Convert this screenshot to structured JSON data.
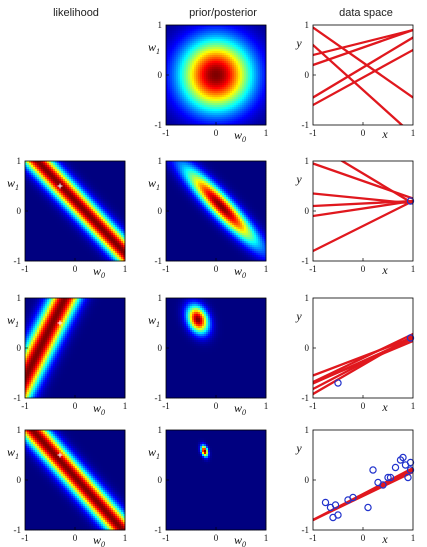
{
  "figure": {
    "columns": [
      {
        "key": "likelihood",
        "title": "likelihood"
      },
      {
        "key": "prior_posterior",
        "title": "prior/posterior"
      },
      {
        "key": "data_space",
        "title": "data space"
      }
    ],
    "axis_labels": {
      "w_symbol": "w",
      "w1_sub": "1",
      "w0_sub": "0",
      "x": "x",
      "y": "y"
    },
    "ticks": {
      "neg": "-1",
      "zero": "0",
      "pos": "1"
    }
  },
  "chart_data": [
    {
      "type": "heatmap",
      "row": 0,
      "column": "prior_posterior",
      "distribution": "prior",
      "mean": [
        0,
        0
      ],
      "cov": [
        [
          0.25,
          0
        ],
        [
          0,
          0.25
        ]
      ],
      "xlim": [
        -1,
        1
      ],
      "ylim": [
        -1,
        1
      ],
      "xlabel": "w0",
      "ylabel": "w1",
      "colormap": "jet"
    },
    {
      "type": "line",
      "row": 0,
      "column": "data_space",
      "lines": [
        {
          "w0": -0.3,
          "w1": -0.9
        },
        {
          "w0": 0.55,
          "w1": 0.35
        },
        {
          "w0": -0.05,
          "w1": 0.55
        },
        {
          "w0": 0.25,
          "w1": -0.7
        },
        {
          "w0": 0.65,
          "w1": 0.25
        },
        {
          "w0": 0.15,
          "w1": 0.6
        }
      ],
      "points": [],
      "xlim": [
        -1,
        1
      ],
      "ylim": [
        -1,
        1
      ],
      "xlabel": "x",
      "ylabel": "y"
    },
    {
      "type": "heatmap",
      "row": 1,
      "column": "likelihood",
      "distribution": "likelihood",
      "observations": [
        {
          "x": 0.95,
          "y": 0.2
        }
      ],
      "cross": [
        -0.3,
        0.5
      ],
      "xlim": [
        -1,
        1
      ],
      "ylim": [
        -1,
        1
      ],
      "xlabel": "w0",
      "ylabel": "w1",
      "colormap": "jet"
    },
    {
      "type": "heatmap",
      "row": 1,
      "column": "prior_posterior",
      "distribution": "posterior",
      "observations": [
        {
          "x": 0.95,
          "y": 0.2
        }
      ],
      "xlim": [
        -1,
        1
      ],
      "ylim": [
        -1,
        1
      ],
      "xlabel": "w0",
      "ylabel": "w1",
      "colormap": "jet"
    },
    {
      "type": "line",
      "row": 1,
      "column": "data_space",
      "lines": [
        {
          "w0": 0.25,
          "w1": -0.1
        },
        {
          "w0": 0.6,
          "w1": -0.35
        },
        {
          "w0": 0.05,
          "w1": 0.15
        },
        {
          "w0": 0.75,
          "w1": -0.6
        },
        {
          "w0": 0.15,
          "w1": 0.05
        },
        {
          "w0": -0.3,
          "w1": 0.5
        }
      ],
      "points": [
        {
          "x": 0.95,
          "y": 0.2
        }
      ],
      "xlim": [
        -1,
        1
      ],
      "ylim": [
        -1,
        1
      ],
      "xlabel": "x",
      "ylabel": "y"
    },
    {
      "type": "heatmap",
      "row": 2,
      "column": "likelihood",
      "distribution": "likelihood",
      "observations": [
        {
          "x": -0.5,
          "y": -0.7
        }
      ],
      "cross": [
        -0.3,
        0.5
      ],
      "xlim": [
        -1,
        1
      ],
      "ylim": [
        -1,
        1
      ],
      "xlabel": "w0",
      "ylabel": "w1",
      "colormap": "jet"
    },
    {
      "type": "heatmap",
      "row": 2,
      "column": "prior_posterior",
      "distribution": "posterior",
      "observations": [
        {
          "x": 0.95,
          "y": 0.2
        },
        {
          "x": -0.5,
          "y": -0.7
        }
      ],
      "xlim": [
        -1,
        1
      ],
      "ylim": [
        -1,
        1
      ],
      "xlabel": "w0",
      "ylabel": "w1",
      "colormap": "jet"
    },
    {
      "type": "line",
      "row": 2,
      "column": "data_space",
      "lines": [
        {
          "w0": -0.28,
          "w1": 0.42
        },
        {
          "w0": -0.2,
          "w1": 0.48
        },
        {
          "w0": -0.3,
          "w1": 0.52
        },
        {
          "w0": -0.17,
          "w1": 0.38
        },
        {
          "w0": -0.34,
          "w1": 0.58
        },
        {
          "w0": -0.26,
          "w1": 0.45
        }
      ],
      "points": [
        {
          "x": 0.95,
          "y": 0.2
        },
        {
          "x": -0.5,
          "y": -0.7
        }
      ],
      "xlim": [
        -1,
        1
      ],
      "ylim": [
        -1,
        1
      ],
      "xlabel": "x",
      "ylabel": "y"
    },
    {
      "type": "heatmap",
      "row": 3,
      "column": "likelihood",
      "distribution": "likelihood",
      "observations": [
        {
          "x": 0.9,
          "y": 0.05
        }
      ],
      "cross": [
        -0.3,
        0.5
      ],
      "xlim": [
        -1,
        1
      ],
      "ylim": [
        -1,
        1
      ],
      "xlabel": "w0",
      "ylabel": "w1",
      "colormap": "jet"
    },
    {
      "type": "heatmap",
      "row": 3,
      "column": "prior_posterior",
      "distribution": "posterior",
      "observations": [
        {
          "x": 0.95,
          "y": 0.2
        },
        {
          "x": -0.5,
          "y": -0.7
        },
        {
          "x": 0.9,
          "y": 0.05
        },
        {
          "x": 0.5,
          "y": 0.05
        },
        {
          "x": -0.3,
          "y": -0.4
        },
        {
          "x": 0.75,
          "y": 0.4
        },
        {
          "x": 0.2,
          "y": 0.2
        },
        {
          "x": -0.6,
          "y": -0.75
        },
        {
          "x": 0.85,
          "y": 0.3
        },
        {
          "x": -0.75,
          "y": -0.45
        },
        {
          "x": 0.4,
          "y": -0.1
        },
        {
          "x": 0.65,
          "y": 0.25
        },
        {
          "x": -0.65,
          "y": -0.55
        },
        {
          "x": 0.95,
          "y": 0.35
        },
        {
          "x": 0.1,
          "y": -0.55
        },
        {
          "x": 0.8,
          "y": 0.45
        },
        {
          "x": -0.2,
          "y": -0.35
        },
        {
          "x": 0.55,
          "y": 0.05
        },
        {
          "x": 0.3,
          "y": -0.05
        },
        {
          "x": -0.55,
          "y": -0.5
        }
      ],
      "xlim": [
        -1,
        1
      ],
      "ylim": [
        -1,
        1
      ],
      "xlabel": "w0",
      "ylabel": "w1",
      "colormap": "jet"
    },
    {
      "type": "line",
      "row": 3,
      "column": "data_space",
      "lines": [
        {
          "w0": -0.3,
          "w1": 0.5
        },
        {
          "w0": -0.28,
          "w1": 0.52
        },
        {
          "w0": -0.32,
          "w1": 0.48
        },
        {
          "w0": -0.29,
          "w1": 0.51
        },
        {
          "w0": -0.31,
          "w1": 0.49
        },
        {
          "w0": -0.3,
          "w1": 0.5
        }
      ],
      "points": [
        {
          "x": 0.95,
          "y": 0.2
        },
        {
          "x": -0.5,
          "y": -0.7
        },
        {
          "x": 0.9,
          "y": 0.05
        },
        {
          "x": 0.5,
          "y": 0.05
        },
        {
          "x": -0.3,
          "y": -0.4
        },
        {
          "x": 0.75,
          "y": 0.4
        },
        {
          "x": 0.2,
          "y": 0.2
        },
        {
          "x": -0.6,
          "y": -0.75
        },
        {
          "x": 0.85,
          "y": 0.3
        },
        {
          "x": -0.75,
          "y": -0.45
        },
        {
          "x": 0.4,
          "y": -0.1
        },
        {
          "x": 0.65,
          "y": 0.25
        },
        {
          "x": -0.65,
          "y": -0.55
        },
        {
          "x": 0.95,
          "y": 0.35
        },
        {
          "x": 0.1,
          "y": -0.55
        },
        {
          "x": 0.8,
          "y": 0.45
        },
        {
          "x": -0.2,
          "y": -0.35
        },
        {
          "x": 0.55,
          "y": 0.05
        },
        {
          "x": 0.3,
          "y": -0.05
        },
        {
          "x": -0.55,
          "y": -0.5
        }
      ],
      "xlim": [
        -1,
        1
      ],
      "ylim": [
        -1,
        1
      ],
      "xlabel": "x",
      "ylabel": "y"
    }
  ],
  "colors": {
    "line": "#e0181e",
    "point": "#2233cc",
    "cross": "#ffffff",
    "axis": "#000000"
  }
}
